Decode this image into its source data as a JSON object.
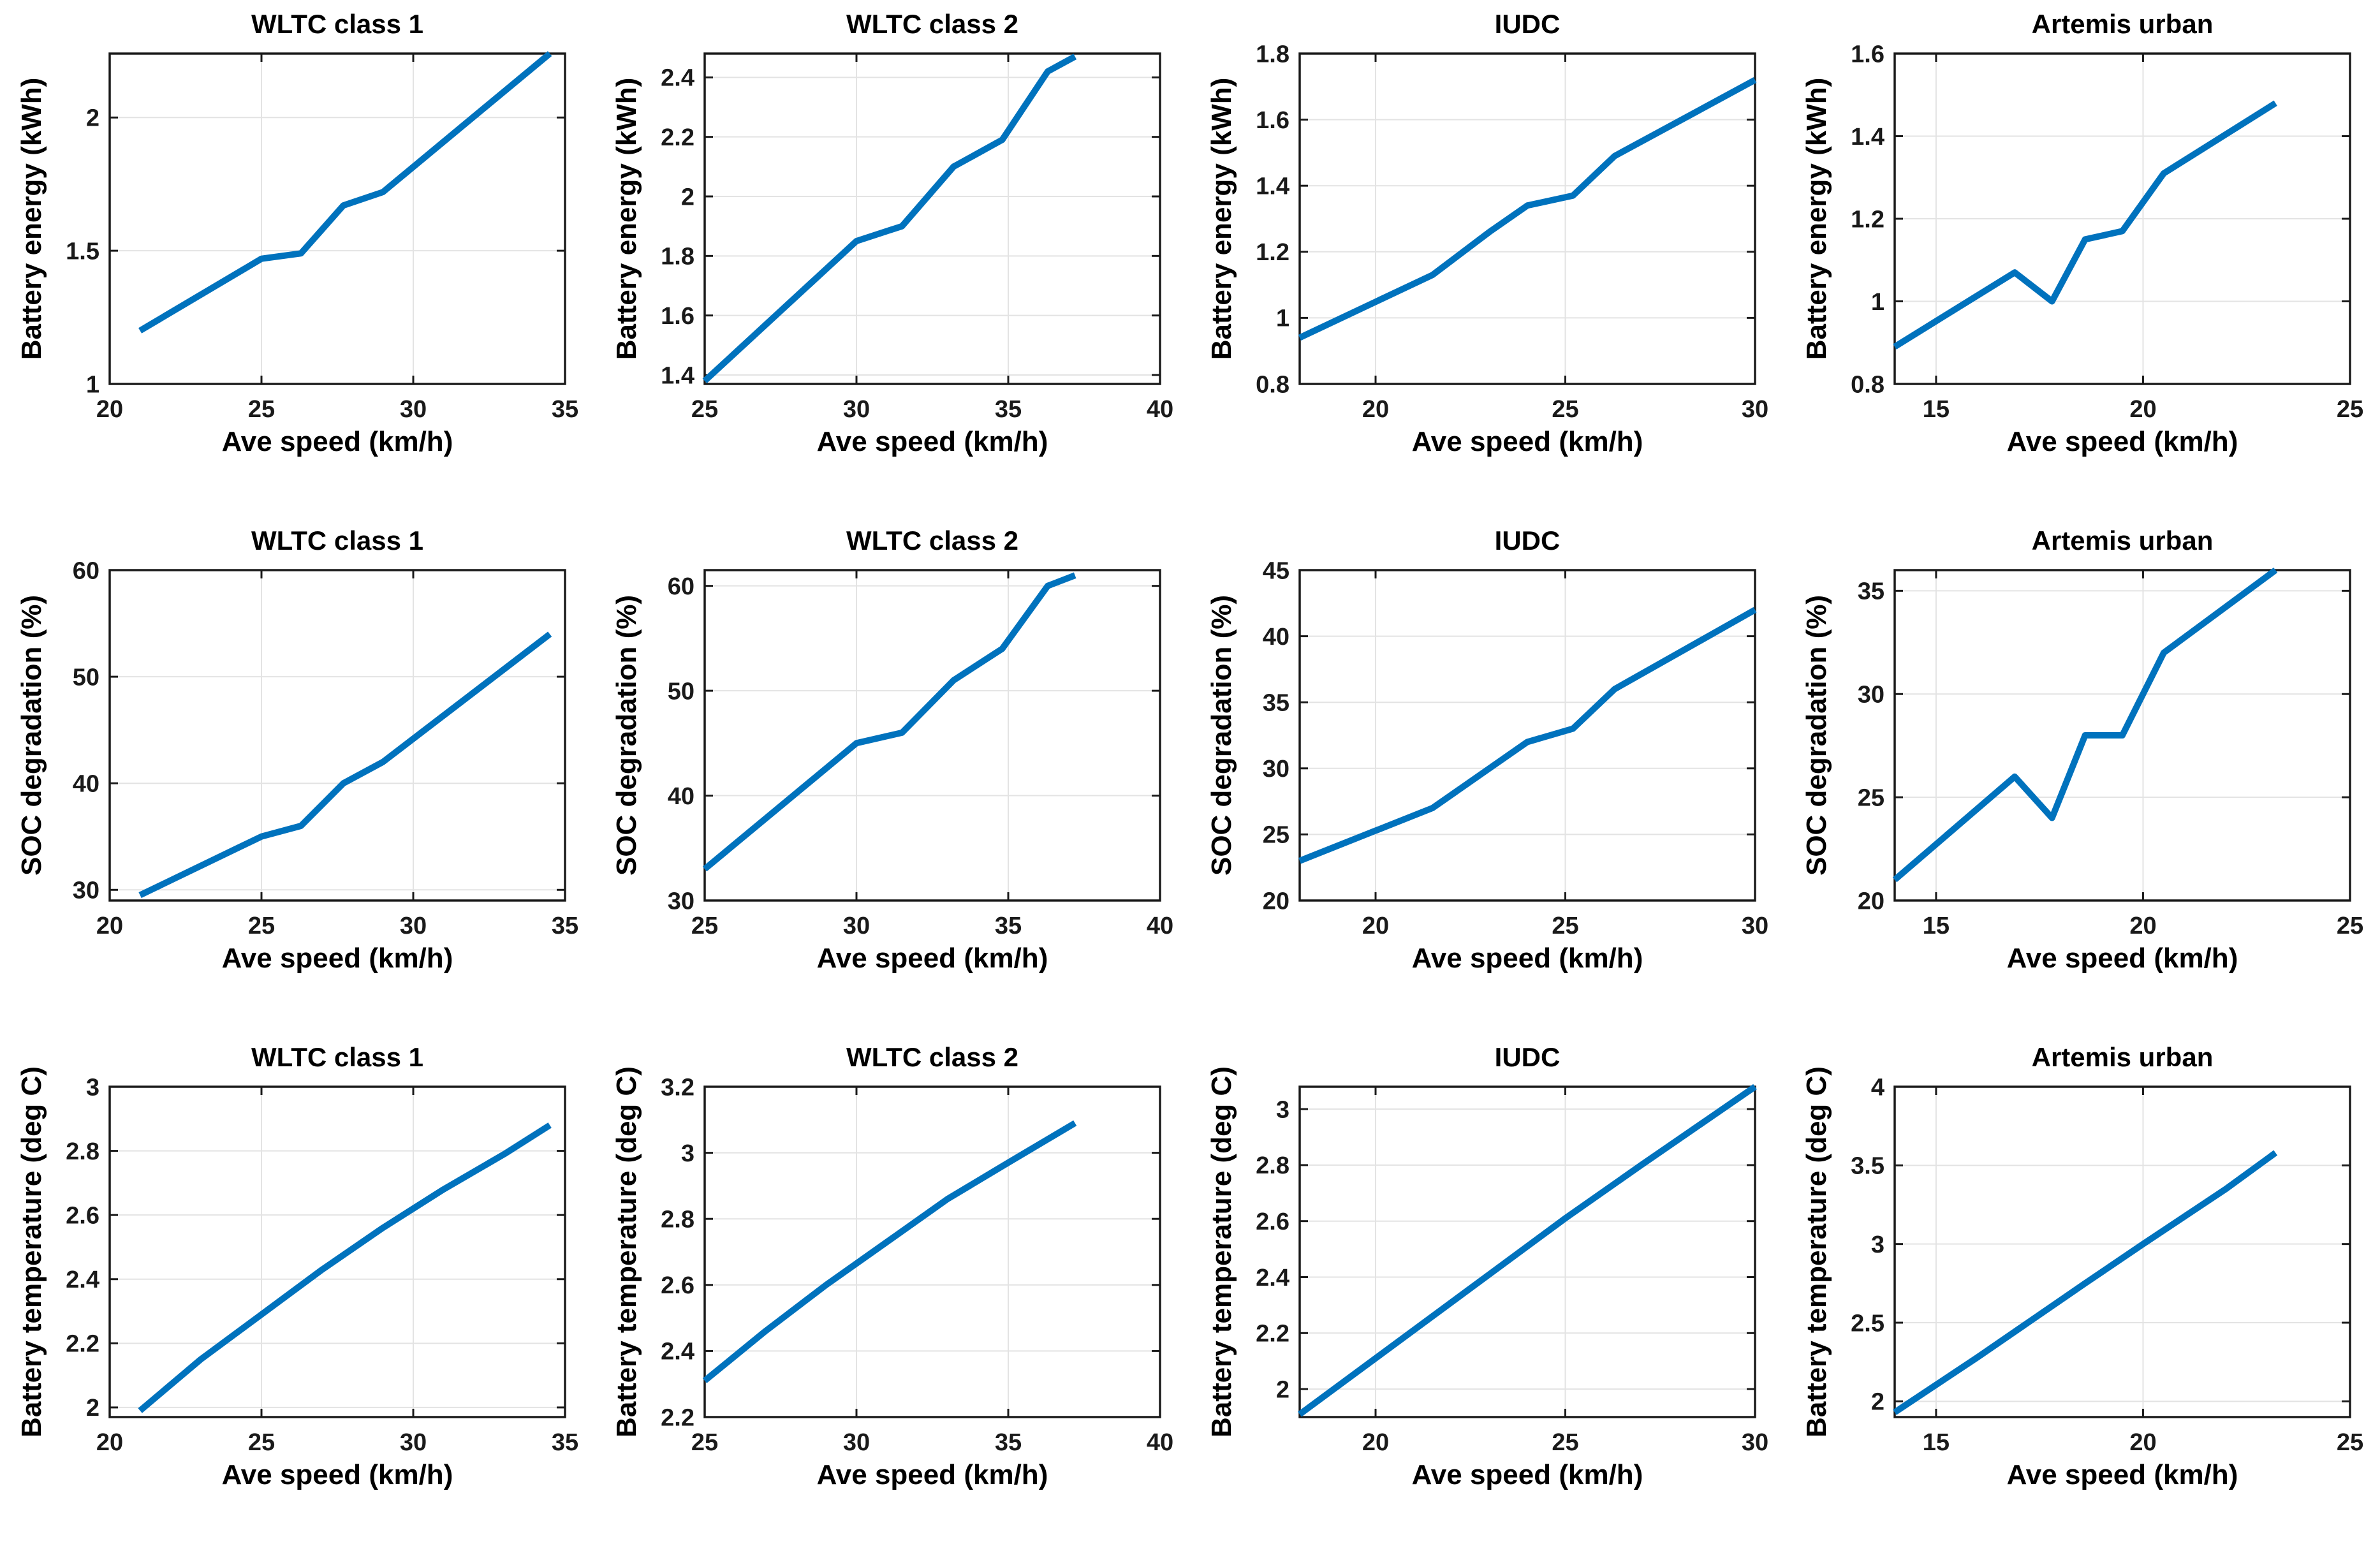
{
  "figure": {
    "column_titles": [
      "WLTC class 1",
      "WLTC class 2",
      "IUDC",
      "Artemis urban"
    ],
    "row_ylabels": [
      "Battery energy (kWh)",
      "SOC degradation (%)",
      "Battery temperature (deg C)"
    ],
    "xlabel": "Ave speed (km/h)",
    "colors": {
      "line": "#0072BD",
      "grid": "#e3e3e3",
      "axis": "#1a1a1a",
      "text": "#000000",
      "background": "#ffffff"
    }
  },
  "chart_data": [
    {
      "type": "line",
      "title": "WLTC class 1",
      "xlabel": "Ave speed (km/h)",
      "ylabel": "Battery energy (kWh)",
      "x": [
        21,
        25,
        26.3,
        27.7,
        29,
        34.5
      ],
      "y": [
        1.2,
        1.47,
        1.49,
        1.67,
        1.72,
        2.24
      ],
      "xlim": [
        20,
        35
      ],
      "xticks": [
        20,
        25,
        30,
        35
      ],
      "ylim": [
        1.0,
        2.24
      ],
      "yticks": [
        1,
        1.5,
        2
      ],
      "grid": true
    },
    {
      "type": "line",
      "title": "WLTC class 2",
      "xlabel": "Ave speed (km/h)",
      "ylabel": "Battery energy (kWh)",
      "x": [
        25,
        30,
        31.5,
        33.2,
        34.8,
        36.3,
        37.2
      ],
      "y": [
        1.38,
        1.85,
        1.9,
        2.1,
        2.19,
        2.42,
        2.47
      ],
      "xlim": [
        25,
        40
      ],
      "xticks": [
        25,
        30,
        35,
        40
      ],
      "ylim": [
        1.37,
        2.48
      ],
      "yticks": [
        1.4,
        1.6,
        1.8,
        2,
        2.2,
        2.4
      ],
      "grid": true
    },
    {
      "type": "line",
      "title": "IUDC",
      "xlabel": "Ave speed (km/h)",
      "ylabel": "Battery energy (kWh)",
      "x": [
        18,
        21.5,
        23,
        24,
        25.2,
        26.3,
        30
      ],
      "y": [
        0.94,
        1.13,
        1.26,
        1.34,
        1.37,
        1.49,
        1.72
      ],
      "xlim": [
        18,
        30
      ],
      "xticks": [
        20,
        25,
        30
      ],
      "ylim": [
        0.8,
        1.8
      ],
      "yticks": [
        0.8,
        1,
        1.2,
        1.4,
        1.6,
        1.8
      ],
      "grid": true
    },
    {
      "type": "line",
      "title": "Artemis urban",
      "xlabel": "Ave speed (km/h)",
      "ylabel": "Battery energy (kWh)",
      "x": [
        14,
        16.9,
        17.8,
        18.6,
        19.5,
        20.5,
        23.2
      ],
      "y": [
        0.89,
        1.07,
        1.0,
        1.15,
        1.17,
        1.31,
        1.48
      ],
      "xlim": [
        14,
        25
      ],
      "xticks": [
        15,
        20,
        25
      ],
      "ylim": [
        0.8,
        1.6
      ],
      "yticks": [
        0.8,
        1,
        1.2,
        1.4,
        1.6
      ],
      "grid": true
    },
    {
      "type": "line",
      "title": "WLTC class 1",
      "xlabel": "Ave speed (km/h)",
      "ylabel": "SOC degradation (%)",
      "x": [
        21,
        25,
        26.3,
        27.7,
        29,
        34.5
      ],
      "y": [
        29.5,
        35,
        36,
        40,
        42,
        54
      ],
      "xlim": [
        20,
        35
      ],
      "xticks": [
        20,
        25,
        30,
        35
      ],
      "ylim": [
        29,
        60
      ],
      "yticks": [
        30,
        40,
        50,
        60
      ],
      "grid": true
    },
    {
      "type": "line",
      "title": "WLTC class 2",
      "xlabel": "Ave speed (km/h)",
      "ylabel": "SOC degradation (%)",
      "x": [
        25,
        30,
        31.5,
        33.2,
        34.8,
        36.3,
        37.2
      ],
      "y": [
        33,
        45,
        46,
        51,
        54,
        60,
        61
      ],
      "xlim": [
        25,
        40
      ],
      "xticks": [
        25,
        30,
        35,
        40
      ],
      "ylim": [
        30,
        61.5
      ],
      "yticks": [
        30,
        40,
        50,
        60
      ],
      "grid": true
    },
    {
      "type": "line",
      "title": "IUDC",
      "xlabel": "Ave speed (km/h)",
      "ylabel": "SOC degradation (%)",
      "x": [
        18,
        21.5,
        23,
        24,
        25.2,
        26.3,
        30
      ],
      "y": [
        23,
        27,
        30,
        32,
        33,
        36,
        42
      ],
      "xlim": [
        18,
        30
      ],
      "xticks": [
        20,
        25,
        30
      ],
      "ylim": [
        20,
        45
      ],
      "yticks": [
        20,
        25,
        30,
        35,
        40,
        45
      ],
      "grid": true
    },
    {
      "type": "line",
      "title": "Artemis urban",
      "xlabel": "Ave speed (km/h)",
      "ylabel": "SOC degradation (%)",
      "x": [
        14,
        16.9,
        17.8,
        18.6,
        19.5,
        20.5,
        23.2
      ],
      "y": [
        21,
        26,
        24,
        28,
        28,
        32,
        36
      ],
      "xlim": [
        14,
        25
      ],
      "xticks": [
        15,
        20,
        25
      ],
      "ylim": [
        20,
        36
      ],
      "yticks": [
        20,
        25,
        30,
        35
      ],
      "grid": true
    },
    {
      "type": "line",
      "title": "WLTC class 1",
      "xlabel": "Ave speed (km/h)",
      "ylabel": "Battery temperature (deg C)",
      "x": [
        21,
        23,
        25,
        27,
        29,
        31,
        33,
        34.5
      ],
      "y": [
        1.99,
        2.15,
        2.29,
        2.43,
        2.56,
        2.68,
        2.79,
        2.88
      ],
      "xlim": [
        20,
        35
      ],
      "xticks": [
        20,
        25,
        30,
        35
      ],
      "ylim": [
        1.97,
        3.0
      ],
      "yticks": [
        2,
        2.2,
        2.4,
        2.6,
        2.8,
        3
      ],
      "grid": true
    },
    {
      "type": "line",
      "title": "WLTC class 2",
      "xlabel": "Ave speed (km/h)",
      "ylabel": "Battery temperature (deg C)",
      "x": [
        25,
        27,
        29,
        31,
        33,
        35,
        37.2
      ],
      "y": [
        2.31,
        2.46,
        2.6,
        2.73,
        2.86,
        2.97,
        3.09
      ],
      "xlim": [
        25,
        40
      ],
      "xticks": [
        25,
        30,
        35,
        40
      ],
      "ylim": [
        2.2,
        3.2
      ],
      "yticks": [
        2.2,
        2.4,
        2.6,
        2.8,
        3,
        3.2
      ],
      "grid": true
    },
    {
      "type": "line",
      "title": "IUDC",
      "xlabel": "Ave speed (km/h)",
      "ylabel": "Battery temperature (deg C)",
      "x": [
        18,
        20,
        23,
        25,
        27,
        30
      ],
      "y": [
        1.91,
        2.11,
        2.41,
        2.61,
        2.8,
        3.08
      ],
      "xlim": [
        18,
        30
      ],
      "xticks": [
        20,
        25,
        30
      ],
      "ylim": [
        1.9,
        3.08
      ],
      "yticks": [
        2,
        2.2,
        2.4,
        2.6,
        2.8,
        3
      ],
      "grid": true
    },
    {
      "type": "line",
      "title": "Artemis urban",
      "xlabel": "Ave speed (km/h)",
      "ylabel": "Battery temperature (deg C)",
      "x": [
        14,
        16,
        18.6,
        20,
        22,
        23.2
      ],
      "y": [
        1.93,
        2.28,
        2.75,
        3.0,
        3.35,
        3.58
      ],
      "xlim": [
        14,
        25
      ],
      "xticks": [
        15,
        20,
        25
      ],
      "ylim": [
        1.9,
        4.0
      ],
      "yticks": [
        2,
        2.5,
        3,
        3.5,
        4
      ],
      "grid": true
    }
  ]
}
